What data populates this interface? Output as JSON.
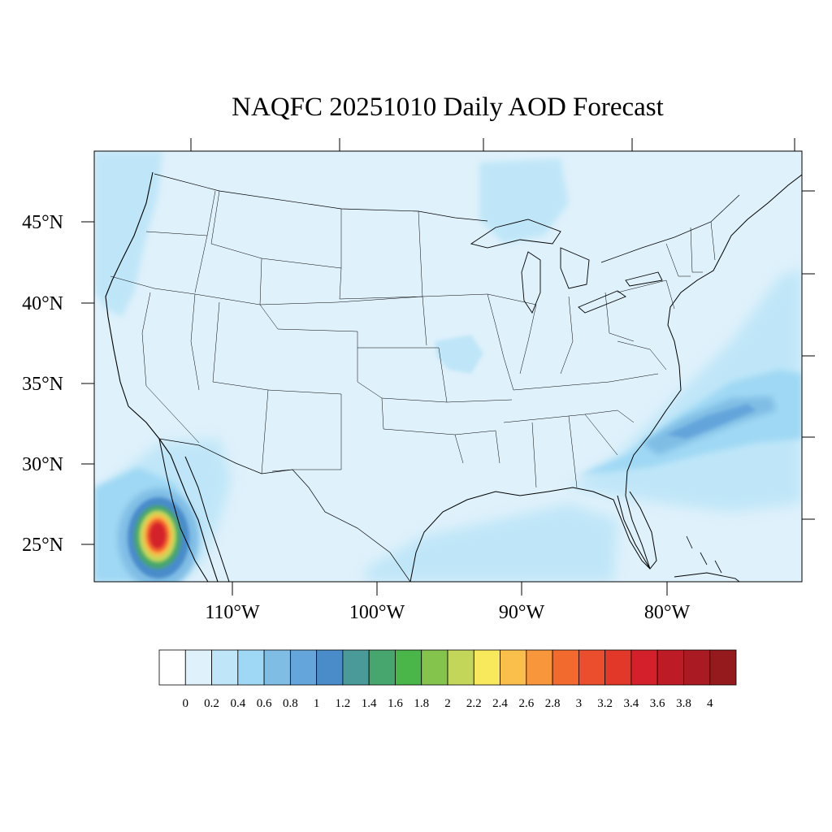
{
  "title": "NAQFC 20251010 Daily AOD Forecast",
  "map": {
    "lat_labels": [
      "45°N",
      "40°N",
      "35°N",
      "30°N",
      "25°N"
    ],
    "lon_labels": [
      "110°W",
      "100°W",
      "90°W",
      "80°W"
    ],
    "background_color": "#dff1fb",
    "land_line_color": "#000000"
  },
  "aod_regions": [
    {
      "name": "sw-plume",
      "peak_level": "3.6"
    },
    {
      "name": "southeast-coast-band",
      "peak_level": "1"
    },
    {
      "name": "gulf-low",
      "peak_level": "0.4"
    },
    {
      "name": "great-lakes",
      "peak_level": "0.4"
    }
  ],
  "colorbar": {
    "colors": [
      "#ffffff",
      "#dff1fb",
      "#bfe6f8",
      "#9fd8f4",
      "#80bde5",
      "#64a5db",
      "#4a8cca",
      "#4a9a9a",
      "#46a66e",
      "#4ab548",
      "#84c44c",
      "#c4d65a",
      "#f8e85c",
      "#f9bf4a",
      "#f8963c",
      "#f36a2e",
      "#ea4e2c",
      "#e2382a",
      "#d3202a",
      "#bd1c26",
      "#a91a22",
      "#941a1e"
    ],
    "labels": [
      "0",
      "0.2",
      "0.4",
      "0.6",
      "0.8",
      "1",
      "1.2",
      "1.4",
      "1.6",
      "1.8",
      "2",
      "2.2",
      "2.4",
      "2.6",
      "2.8",
      "3",
      "3.2",
      "3.4",
      "3.6",
      "3.8",
      "4"
    ]
  }
}
